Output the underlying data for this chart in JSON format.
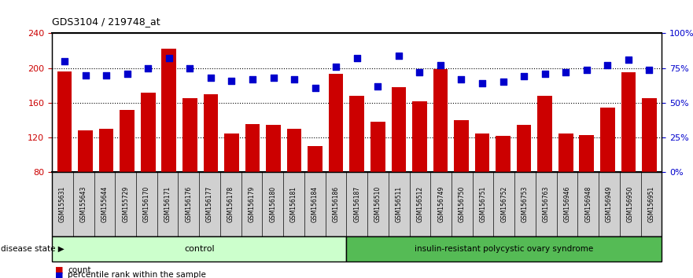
{
  "title": "GDS3104 / 219748_at",
  "samples": [
    "GSM155631",
    "GSM155643",
    "GSM155644",
    "GSM155729",
    "GSM156170",
    "GSM156171",
    "GSM156176",
    "GSM156177",
    "GSM156178",
    "GSM156179",
    "GSM156180",
    "GSM156181",
    "GSM156184",
    "GSM156186",
    "GSM156187",
    "GSM156510",
    "GSM156511",
    "GSM156512",
    "GSM156749",
    "GSM156750",
    "GSM156751",
    "GSM156752",
    "GSM156753",
    "GSM156763",
    "GSM156946",
    "GSM156948",
    "GSM156949",
    "GSM156950",
    "GSM156951"
  ],
  "bar_values": [
    196,
    128,
    130,
    152,
    172,
    222,
    165,
    170,
    125,
    136,
    135,
    130,
    110,
    193,
    168,
    138,
    178,
    162,
    199,
    140,
    125,
    122,
    135,
    168,
    125,
    123,
    155,
    195,
    165
  ],
  "percentile_values": [
    80,
    70,
    70,
    71,
    75,
    82,
    75,
    68,
    66,
    67,
    68,
    67,
    61,
    76,
    82,
    62,
    84,
    72,
    77,
    67,
    64,
    65,
    69,
    71,
    72,
    74,
    77,
    81,
    74
  ],
  "control_count": 14,
  "bar_color": "#cc0000",
  "percentile_color": "#0000cc",
  "control_bg": "#ccffcc",
  "disease_bg": "#55bb55",
  "plot_bg": "#ffffff",
  "tick_bg": "#d0d0d0",
  "ylim_left": [
    80,
    240
  ],
  "ylim_right": [
    0,
    100
  ],
  "yticks_left": [
    80,
    120,
    160,
    200,
    240
  ],
  "yticks_right": [
    0,
    25,
    50,
    75,
    100
  ],
  "ylabel_left_color": "#cc0000",
  "ylabel_right_color": "#0000cc",
  "grid_values": [
    120,
    160,
    200
  ],
  "disease_label": "insulin-resistant polycystic ovary syndrome",
  "control_label": "control",
  "disease_state_label": "disease state"
}
